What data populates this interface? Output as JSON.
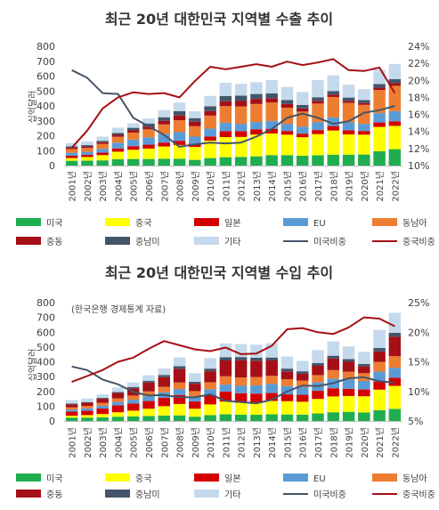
{
  "chart_data": [
    {
      "type": "bar",
      "stacked": true,
      "title": "최근 20년 대한민국 지역별 수출 추이",
      "note": "",
      "ylabel": "십억달러",
      "ylim": [
        0,
        800
      ],
      "y2lim": [
        10,
        24
      ],
      "yticks": [
        "0",
        "100",
        "200",
        "300",
        "400",
        "500",
        "600",
        "700",
        "800"
      ],
      "y2ticks": [
        "10%",
        "12%",
        "14%",
        "16%",
        "18%",
        "20%",
        "22%",
        "24%"
      ],
      "categories": [
        "2001년",
        "2002년",
        "2003년",
        "2004년",
        "2005년",
        "2006년",
        "2007년",
        "2008년",
        "2009년",
        "2010년",
        "2011년",
        "2012년",
        "2013년",
        "2014년",
        "2015년",
        "2016년",
        "2017년",
        "2018년",
        "2019년",
        "2020년",
        "2021년",
        "2022년"
      ],
      "series": [
        {
          "name": "미국",
          "color": "#1fae4f",
          "values": [
            32,
            33,
            35,
            43,
            44,
            44,
            46,
            46,
            38,
            50,
            56,
            58,
            62,
            70,
            70,
            66,
            69,
            73,
            73,
            74,
            96,
            110
          ]
        },
        {
          "name": "중국",
          "color": "#ffff00",
          "values": [
            18,
            24,
            35,
            50,
            62,
            70,
            82,
            92,
            87,
            117,
            135,
            134,
            146,
            145,
            137,
            124,
            142,
            162,
            136,
            133,
            163,
            156
          ]
        },
        {
          "name": "일본",
          "color": "#d40000",
          "values": [
            16,
            15,
            17,
            22,
            24,
            26,
            26,
            28,
            22,
            28,
            40,
            39,
            35,
            32,
            25,
            24,
            27,
            30,
            28,
            25,
            30,
            31
          ]
        },
        {
          "name": "EU",
          "color": "#5b9bd5",
          "values": [
            20,
            20,
            25,
            38,
            44,
            49,
            56,
            58,
            47,
            53,
            56,
            49,
            49,
            52,
            48,
            47,
            54,
            58,
            53,
            48,
            63,
            68
          ]
        },
        {
          "name": "동남아",
          "color": "#ed7d31",
          "values": [
            25,
            26,
            33,
            40,
            47,
            54,
            66,
            80,
            70,
            87,
            112,
            117,
            121,
            124,
            108,
            101,
            124,
            137,
            130,
            127,
            155,
            170
          ]
        },
        {
          "name": "중동",
          "color": "#a50f15",
          "values": [
            9,
            10,
            11,
            13,
            15,
            19,
            24,
            32,
            30,
            30,
            32,
            36,
            34,
            29,
            25,
            21,
            18,
            16,
            14,
            12,
            15,
            18
          ]
        },
        {
          "name": "중남미",
          "color": "#44546a",
          "values": [
            9,
            9,
            10,
            13,
            17,
            20,
            24,
            29,
            24,
            33,
            36,
            36,
            33,
            32,
            27,
            24,
            24,
            24,
            22,
            20,
            25,
            27
          ]
        },
        {
          "name": "기타",
          "color": "#c5d9ec",
          "values": [
            21,
            25,
            28,
            35,
            31,
            34,
            48,
            57,
            46,
            69,
            88,
            79,
            79,
            89,
            87,
            86,
            115,
            105,
            86,
            73,
            97,
            101
          ]
        }
      ],
      "lines": [
        {
          "name": "미국비중",
          "color": "#44546a",
          "values": [
            21.2,
            20.3,
            18.5,
            18.4,
            15.6,
            14.6,
            13.6,
            12.2,
            12.5,
            12.7,
            12.6,
            12.7,
            13.4,
            14.3,
            15.6,
            16.1,
            15.6,
            14.9,
            15.2,
            16.2,
            16.5,
            17.0
          ]
        },
        {
          "name": "중국비중",
          "color": "#a50f15",
          "values": [
            12.1,
            14.1,
            16.7,
            18.0,
            18.6,
            18.4,
            18.5,
            18.0,
            19.9,
            21.6,
            21.3,
            21.6,
            21.9,
            21.6,
            22.2,
            21.8,
            22.1,
            22.5,
            21.2,
            21.1,
            21.5,
            18.5
          ]
        }
      ]
    },
    {
      "type": "bar",
      "stacked": true,
      "title": "최근 20년 대한민국 지역별 수입 추이",
      "note": "(한국은행 경제통계 자료)",
      "ylabel": "십억달러",
      "ylim": [
        0,
        800
      ],
      "y2lim": [
        5,
        25
      ],
      "yticks": [
        "0",
        "100",
        "200",
        "300",
        "400",
        "500",
        "600",
        "700",
        "800"
      ],
      "y2ticks": [
        "5%",
        "10%",
        "15%",
        "20%",
        "25%"
      ],
      "categories": [
        "2001년",
        "2002년",
        "2003년",
        "2004년",
        "2005년",
        "2006년",
        "2007년",
        "2008년",
        "2009년",
        "2010년",
        "2011년",
        "2012년",
        "2013년",
        "2014년",
        "2015년",
        "2016년",
        "2017년",
        "2018년",
        "2019년",
        "2020년",
        "2021년",
        "2022년"
      ],
      "series": [
        {
          "name": "미국",
          "color": "#1fae4f",
          "values": [
            23,
            23,
            25,
            29,
            31,
            34,
            37,
            38,
            29,
            40,
            45,
            43,
            42,
            45,
            44,
            43,
            51,
            59,
            62,
            58,
            73,
            82
          ]
        },
        {
          "name": "중국",
          "color": "#ffff00",
          "values": [
            13,
            17,
            22,
            30,
            39,
            49,
            63,
            77,
            54,
            72,
            86,
            81,
            83,
            90,
            90,
            87,
            98,
            107,
            107,
            109,
            139,
            155
          ]
        },
        {
          "name": "일본",
          "color": "#d40000",
          "values": [
            27,
            30,
            37,
            46,
            48,
            52,
            56,
            61,
            49,
            64,
            68,
            64,
            60,
            54,
            46,
            47,
            55,
            55,
            48,
            46,
            55,
            55
          ]
        },
        {
          "name": "EU",
          "color": "#5b9bd5",
          "values": [
            14,
            15,
            19,
            24,
            26,
            32,
            38,
            40,
            35,
            39,
            47,
            50,
            56,
            62,
            56,
            52,
            57,
            66,
            62,
            58,
            67,
            68
          ]
        },
        {
          "name": "동남아",
          "color": "#ed7d31",
          "values": [
            15,
            17,
            20,
            24,
            28,
            33,
            37,
            44,
            35,
            47,
            56,
            56,
            56,
            54,
            46,
            44,
            49,
            57,
            54,
            52,
            65,
            78
          ]
        },
        {
          "name": "중동",
          "color": "#a50f15",
          "values": [
            21,
            21,
            27,
            36,
            49,
            60,
            65,
            93,
            50,
            74,
            107,
            117,
            110,
            104,
            53,
            46,
            63,
            78,
            67,
            46,
            71,
            132
          ]
        },
        {
          "name": "중남미",
          "color": "#44546a",
          "values": [
            5,
            5,
            6,
            7,
            9,
            12,
            15,
            17,
            13,
            18,
            22,
            21,
            21,
            20,
            19,
            17,
            19,
            19,
            18,
            17,
            23,
            26
          ]
        },
        {
          "name": "기타",
          "color": "#c5d9ec",
          "values": [
            23,
            24,
            24,
            30,
            31,
            37,
            45,
            60,
            58,
            71,
            93,
            88,
            88,
            96,
            82,
            70,
            87,
            97,
            86,
            81,
            123,
            135
          ]
        }
      ],
      "lines": [
        {
          "name": "미국비중",
          "color": "#44546a",
          "values": [
            14.2,
            13.6,
            12.0,
            11.2,
            9.9,
            9.3,
            9.4,
            9.0,
            9.0,
            9.5,
            8.4,
            8.2,
            8.0,
            8.6,
            10.0,
            11.0,
            10.9,
            11.4,
            12.2,
            12.4,
            11.7,
            11.5
          ]
        },
        {
          "name": "중국비중",
          "color": "#a50f15",
          "values": [
            11.6,
            12.6,
            13.6,
            15.0,
            15.7,
            17.2,
            18.5,
            17.8,
            17.1,
            16.8,
            17.4,
            16.3,
            16.4,
            17.7,
            20.5,
            20.7,
            20.0,
            19.7,
            20.8,
            22.5,
            22.3,
            21.0
          ]
        }
      ]
    }
  ]
}
